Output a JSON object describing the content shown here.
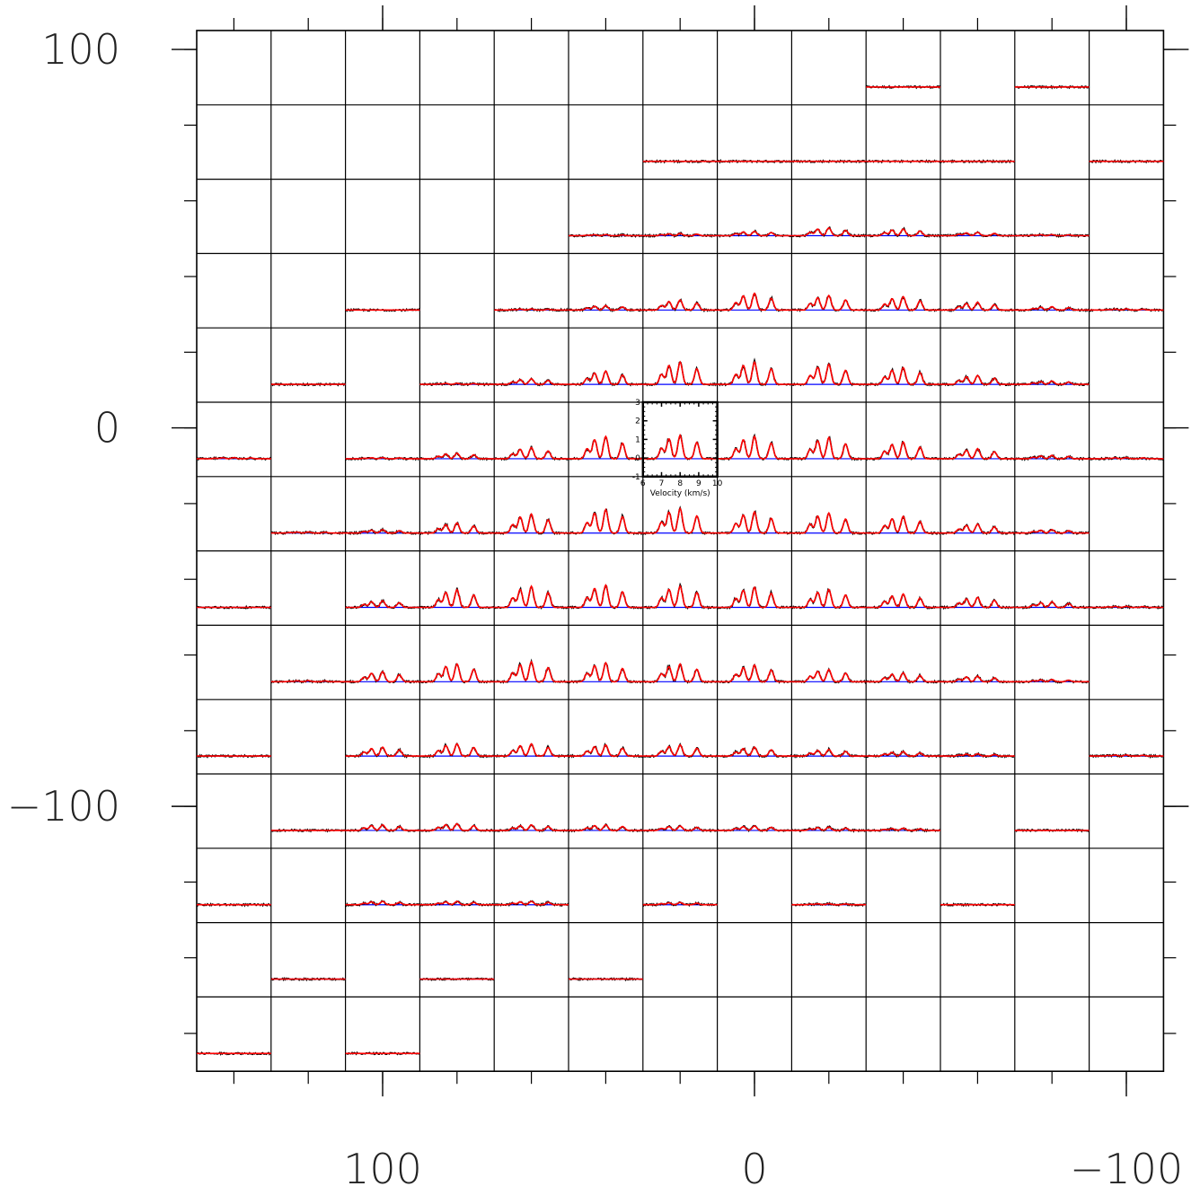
{
  "chart_data": {
    "type": "line",
    "grid": {
      "columns": 13,
      "rows": 14
    },
    "x_axis": {
      "range": [
        150,
        -110
      ],
      "ticks": [
        {
          "value": 100,
          "label": "100"
        },
        {
          "value": 0,
          "label": "0"
        },
        {
          "value": -100,
          "label": "−100"
        }
      ],
      "minor_step": 20
    },
    "y_axis": {
      "range": [
        -170,
        105
      ],
      "ticks": [
        {
          "value": 100,
          "label": "100"
        },
        {
          "value": 0,
          "label": "0"
        },
        {
          "value": -100,
          "label": "−100"
        }
      ],
      "minor_step": 20
    },
    "inset": {
      "cell": [
        6,
        5
      ],
      "x_range": [
        6,
        10
      ],
      "y_range": [
        -1,
        3
      ],
      "x_ticks": [
        "6",
        "7",
        "8",
        "9",
        "10"
      ],
      "y_ticks": [
        "-1",
        "0",
        "1",
        "2",
        "3"
      ],
      "xlabel": "Velocity (km/s)"
    },
    "spectrum": {
      "peak_velocities_kms": [
        7.0,
        7.4,
        8.0,
        8.9
      ],
      "relative_heights": [
        0.45,
        0.85,
        1.0,
        0.7
      ],
      "width_kms": 0.12
    },
    "series": [
      {
        "name": "",
        "color": "#000000"
      },
      {
        "name": "",
        "color": "#ff0000"
      },
      {
        "name": "",
        "color": "#0000ff"
      }
    ],
    "amplitude_scale": 3,
    "cells": [
      {
        "c": 9,
        "r": 0,
        "peak": 0
      },
      {
        "c": 11,
        "r": 0,
        "peak": 0
      },
      {
        "c": 6,
        "r": 1,
        "peak": 0
      },
      {
        "c": 7,
        "r": 1,
        "peak": 0
      },
      {
        "c": 8,
        "r": 1,
        "peak": 0
      },
      {
        "c": 9,
        "r": 1,
        "peak": 0
      },
      {
        "c": 10,
        "r": 1,
        "peak": 0
      },
      {
        "c": 12,
        "r": 1,
        "peak": 0
      },
      {
        "c": 5,
        "r": 2,
        "peak": 0.1
      },
      {
        "c": 6,
        "r": 2,
        "peak": 0.2
      },
      {
        "c": 7,
        "r": 2,
        "peak": 0.4
      },
      {
        "c": 8,
        "r": 2,
        "peak": 0.7
      },
      {
        "c": 9,
        "r": 2,
        "peak": 0.6
      },
      {
        "c": 10,
        "r": 2,
        "peak": 0.3
      },
      {
        "c": 11,
        "r": 2,
        "peak": 0.1
      },
      {
        "c": 2,
        "r": 3,
        "peak": 0
      },
      {
        "c": 4,
        "r": 3,
        "peak": 0.1
      },
      {
        "c": 5,
        "r": 3,
        "peak": 0.4
      },
      {
        "c": 6,
        "r": 3,
        "peak": 0.9
      },
      {
        "c": 7,
        "r": 3,
        "peak": 1.5
      },
      {
        "c": 8,
        "r": 3,
        "peak": 1.3
      },
      {
        "c": 9,
        "r": 3,
        "peak": 1.2
      },
      {
        "c": 10,
        "r": 3,
        "peak": 0.7
      },
      {
        "c": 11,
        "r": 3,
        "peak": 0.3
      },
      {
        "c": 12,
        "r": 3,
        "peak": 0.1
      },
      {
        "c": 1,
        "r": 4,
        "peak": 0
      },
      {
        "c": 3,
        "r": 4,
        "peak": 0.1
      },
      {
        "c": 4,
        "r": 4,
        "peak": 0.5
      },
      {
        "c": 5,
        "r": 4,
        "peak": 1.2
      },
      {
        "c": 6,
        "r": 4,
        "peak": 2.0
      },
      {
        "c": 7,
        "r": 4,
        "peak": 2.0
      },
      {
        "c": 8,
        "r": 4,
        "peak": 1.8
      },
      {
        "c": 9,
        "r": 4,
        "peak": 1.5
      },
      {
        "c": 10,
        "r": 4,
        "peak": 0.8
      },
      {
        "c": 11,
        "r": 4,
        "peak": 0.3
      },
      {
        "c": 0,
        "r": 5,
        "peak": 0.1
      },
      {
        "c": 2,
        "r": 5,
        "peak": 0.1
      },
      {
        "c": 3,
        "r": 5,
        "peak": 0.5
      },
      {
        "c": 4,
        "r": 5,
        "peak": 1.0
      },
      {
        "c": 5,
        "r": 5,
        "peak": 2.0
      },
      {
        "c": 6,
        "r": 5,
        "peak": 2.1
      },
      {
        "c": 7,
        "r": 5,
        "peak": 2.0
      },
      {
        "c": 8,
        "r": 5,
        "peak": 1.9
      },
      {
        "c": 9,
        "r": 5,
        "peak": 1.5
      },
      {
        "c": 10,
        "r": 5,
        "peak": 0.9
      },
      {
        "c": 11,
        "r": 5,
        "peak": 0.3
      },
      {
        "c": 12,
        "r": 5,
        "peak": 0.1
      },
      {
        "c": 1,
        "r": 6,
        "peak": 0.1
      },
      {
        "c": 2,
        "r": 6,
        "peak": 0.3
      },
      {
        "c": 3,
        "r": 6,
        "peak": 0.9
      },
      {
        "c": 4,
        "r": 6,
        "peak": 1.7
      },
      {
        "c": 5,
        "r": 6,
        "peak": 2.1
      },
      {
        "c": 6,
        "r": 6,
        "peak": 2.2
      },
      {
        "c": 7,
        "r": 6,
        "peak": 1.9
      },
      {
        "c": 8,
        "r": 6,
        "peak": 1.8
      },
      {
        "c": 9,
        "r": 6,
        "peak": 1.5
      },
      {
        "c": 10,
        "r": 6,
        "peak": 0.8
      },
      {
        "c": 11,
        "r": 6,
        "peak": 0.3
      },
      {
        "c": 0,
        "r": 7,
        "peak": 0
      },
      {
        "c": 2,
        "r": 7,
        "peak": 0.6
      },
      {
        "c": 3,
        "r": 7,
        "peak": 1.6
      },
      {
        "c": 4,
        "r": 7,
        "peak": 1.9
      },
      {
        "c": 5,
        "r": 7,
        "peak": 2.0
      },
      {
        "c": 6,
        "r": 7,
        "peak": 1.9
      },
      {
        "c": 7,
        "r": 7,
        "peak": 1.8
      },
      {
        "c": 8,
        "r": 7,
        "peak": 1.6
      },
      {
        "c": 9,
        "r": 7,
        "peak": 1.2
      },
      {
        "c": 10,
        "r": 7,
        "peak": 0.9
      },
      {
        "c": 11,
        "r": 7,
        "peak": 0.5
      },
      {
        "c": 12,
        "r": 7,
        "peak": 0.1
      },
      {
        "c": 1,
        "r": 8,
        "peak": 0.1
      },
      {
        "c": 2,
        "r": 8,
        "peak": 0.9
      },
      {
        "c": 3,
        "r": 8,
        "peak": 1.6
      },
      {
        "c": 4,
        "r": 8,
        "peak": 1.8
      },
      {
        "c": 5,
        "r": 8,
        "peak": 1.7
      },
      {
        "c": 6,
        "r": 8,
        "peak": 1.6
      },
      {
        "c": 7,
        "r": 8,
        "peak": 1.5
      },
      {
        "c": 8,
        "r": 8,
        "peak": 1.1
      },
      {
        "c": 9,
        "r": 8,
        "peak": 0.8
      },
      {
        "c": 10,
        "r": 8,
        "peak": 0.5
      },
      {
        "c": 11,
        "r": 8,
        "peak": 0.2
      },
      {
        "c": 0,
        "r": 9,
        "peak": 0
      },
      {
        "c": 2,
        "r": 9,
        "peak": 0.8
      },
      {
        "c": 3,
        "r": 9,
        "peak": 1.1
      },
      {
        "c": 4,
        "r": 9,
        "peak": 1.1
      },
      {
        "c": 5,
        "r": 9,
        "peak": 1.0
      },
      {
        "c": 6,
        "r": 9,
        "peak": 1.0
      },
      {
        "c": 7,
        "r": 9,
        "peak": 0.8
      },
      {
        "c": 8,
        "r": 9,
        "peak": 0.6
      },
      {
        "c": 9,
        "r": 9,
        "peak": 0.4
      },
      {
        "c": 10,
        "r": 9,
        "peak": 0.2
      },
      {
        "c": 12,
        "r": 9,
        "peak": 0.1
      },
      {
        "c": 1,
        "r": 10,
        "peak": 0
      },
      {
        "c": 2,
        "r": 10,
        "peak": 0.5
      },
      {
        "c": 3,
        "r": 10,
        "peak": 0.6
      },
      {
        "c": 4,
        "r": 10,
        "peak": 0.5
      },
      {
        "c": 5,
        "r": 10,
        "peak": 0.5
      },
      {
        "c": 6,
        "r": 10,
        "peak": 0.4
      },
      {
        "c": 7,
        "r": 10,
        "peak": 0.4
      },
      {
        "c": 8,
        "r": 10,
        "peak": 0.3
      },
      {
        "c": 9,
        "r": 10,
        "peak": 0.2
      },
      {
        "c": 11,
        "r": 10,
        "peak": 0
      },
      {
        "c": 0,
        "r": 11,
        "peak": 0
      },
      {
        "c": 2,
        "r": 11,
        "peak": 0.3
      },
      {
        "c": 3,
        "r": 11,
        "peak": 0.3
      },
      {
        "c": 4,
        "r": 11,
        "peak": 0.3
      },
      {
        "c": 6,
        "r": 11,
        "peak": 0.2
      },
      {
        "c": 8,
        "r": 11,
        "peak": 0.1
      },
      {
        "c": 10,
        "r": 11,
        "peak": 0
      },
      {
        "c": 1,
        "r": 12,
        "peak": 0
      },
      {
        "c": 3,
        "r": 12,
        "peak": 0
      },
      {
        "c": 5,
        "r": 12,
        "peak": 0
      },
      {
        "c": 0,
        "r": 13,
        "peak": 0
      },
      {
        "c": 2,
        "r": 13,
        "peak": 0
      }
    ]
  }
}
